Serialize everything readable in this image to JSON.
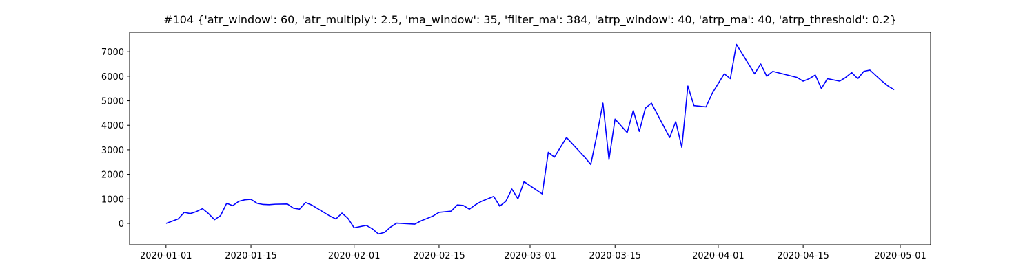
{
  "chart_data": {
    "type": "line",
    "title": "#104 {'atr_window': 60, 'atr_multiply': 2.5, 'ma_window': 35, 'filter_ma': 384, 'atrp_window': 40, 'atrp_ma': 40, 'atrp_threshold': 0.2}",
    "x": [
      "2020-01-01",
      "2020-01-02",
      "2020-01-03",
      "2020-01-04",
      "2020-01-05",
      "2020-01-06",
      "2020-01-07",
      "2020-01-08",
      "2020-01-09",
      "2020-01-10",
      "2020-01-11",
      "2020-01-12",
      "2020-01-13",
      "2020-01-14",
      "2020-01-15",
      "2020-01-16",
      "2020-01-17",
      "2020-01-18",
      "2020-01-19",
      "2020-01-21",
      "2020-01-22",
      "2020-01-23",
      "2020-01-24",
      "2020-01-25",
      "2020-01-28",
      "2020-01-29",
      "2020-01-30",
      "2020-01-31",
      "2020-02-01",
      "2020-02-03",
      "2020-02-04",
      "2020-02-05",
      "2020-02-06",
      "2020-02-07",
      "2020-02-08",
      "2020-02-11",
      "2020-02-12",
      "2020-02-13",
      "2020-02-14",
      "2020-02-15",
      "2020-02-17",
      "2020-02-18",
      "2020-02-19",
      "2020-02-20",
      "2020-02-21",
      "2020-02-22",
      "2020-02-24",
      "2020-02-25",
      "2020-02-26",
      "2020-02-27",
      "2020-02-28",
      "2020-02-29",
      "2020-03-03",
      "2020-03-04",
      "2020-03-05",
      "2020-03-06",
      "2020-03-07",
      "2020-03-10",
      "2020-03-11",
      "2020-03-12",
      "2020-03-13",
      "2020-03-14",
      "2020-03-15",
      "2020-03-17",
      "2020-03-18",
      "2020-03-19",
      "2020-03-20",
      "2020-03-21",
      "2020-03-24",
      "2020-03-25",
      "2020-03-26",
      "2020-03-27",
      "2020-03-28",
      "2020-03-30",
      "2020-03-31",
      "2020-04-01",
      "2020-04-02",
      "2020-04-03",
      "2020-04-04",
      "2020-04-07",
      "2020-04-08",
      "2020-04-09",
      "2020-04-10",
      "2020-04-14",
      "2020-04-15",
      "2020-04-16",
      "2020-04-17",
      "2020-04-18",
      "2020-04-19",
      "2020-04-21",
      "2020-04-22",
      "2020-04-23",
      "2020-04-24",
      "2020-04-25",
      "2020-04-26",
      "2020-04-28",
      "2020-04-29",
      "2020-04-30"
    ],
    "series": [
      {
        "color": "#0000ff",
        "values": [
          0,
          90,
          180,
          450,
          400,
          480,
          600,
          400,
          150,
          320,
          820,
          720,
          900,
          960,
          980,
          820,
          770,
          760,
          780,
          790,
          620,
          580,
          850,
          750,
          300,
          180,
          420,
          200,
          -180,
          -80,
          -220,
          -430,
          -370,
          -150,
          10,
          -30,
          100,
          200,
          300,
          450,
          500,
          750,
          730,
          580,
          760,
          900,
          1100,
          700,
          900,
          1400,
          1000,
          1700,
          1200,
          2900,
          2700,
          3100,
          3500,
          2700,
          2400,
          3600,
          4900,
          2600,
          4250,
          3700,
          4600,
          3750,
          4700,
          4900,
          3500,
          4150,
          3100,
          5600,
          4800,
          4750,
          5300,
          5700,
          6100,
          5900,
          7300,
          6100,
          6500,
          6000,
          6200,
          5950,
          5800,
          5900,
          6050,
          5500,
          5900,
          5800,
          5950,
          6150,
          5900,
          6200,
          6250,
          5800,
          5600,
          5450
        ]
      }
    ],
    "xlim": [
      "2019-12-26",
      "2020-05-06"
    ],
    "xticks": [
      "2020-01-01",
      "2020-01-15",
      "2020-02-01",
      "2020-02-15",
      "2020-03-01",
      "2020-03-15",
      "2020-04-01",
      "2020-04-15",
      "2020-05-01"
    ],
    "ylim": [
      -870,
      7790
    ],
    "yticks": [
      0,
      1000,
      2000,
      3000,
      4000,
      5000,
      6000,
      7000
    ],
    "grid": false
  }
}
